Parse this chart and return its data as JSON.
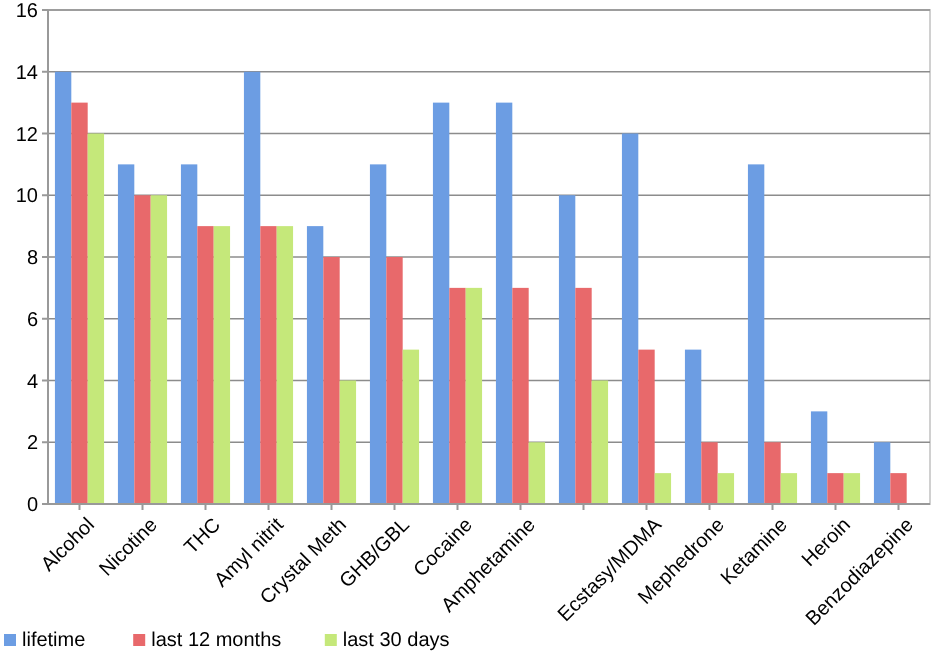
{
  "chart_data": {
    "type": "bar",
    "categories": [
      "Alcohol",
      "Nicotine",
      "THC",
      "Amyl nitrit",
      "Crystal Meth",
      "GHB/GBL",
      "Cocaine",
      "Amphetamine",
      null,
      "Ecstasy/MDMA",
      "Mephedrone",
      "Ketamine",
      "Heroin",
      "Benzodiazepine"
    ],
    "series": [
      {
        "name": "lifetime",
        "color": "#6c9de3",
        "values": [
          14,
          11,
          11,
          14,
          9,
          11,
          13,
          13,
          10,
          12,
          5,
          11,
          3,
          2
        ]
      },
      {
        "name": "last 12 months",
        "color": "#e8696b",
        "values": [
          13,
          10,
          9,
          9,
          8,
          8,
          7,
          7,
          7,
          5,
          2,
          2,
          1,
          1
        ]
      },
      {
        "name": "last 30 days",
        "color": "#c5e87a",
        "values": [
          12,
          10,
          9,
          9,
          4,
          5,
          7,
          2,
          4,
          1,
          1,
          1,
          1,
          0
        ]
      }
    ],
    "ylim": [
      0,
      16
    ],
    "yticks": [
      0,
      2,
      4,
      6,
      8,
      10,
      12,
      14,
      16
    ],
    "grid": "y",
    "legend": "bottom left"
  }
}
